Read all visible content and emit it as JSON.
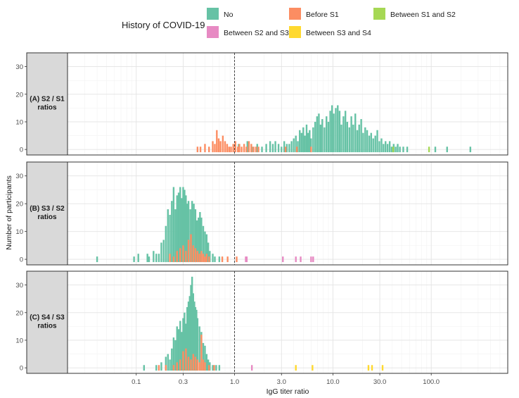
{
  "chart_data": {
    "type": "bar",
    "title": "",
    "xlabel": "IgG titer ratio",
    "ylabel": "Number of participants",
    "x_scale": "log10",
    "x_ticks": [
      0.1,
      0.3,
      1.0,
      3.0,
      10.0,
      30.0,
      100.0
    ],
    "x_tick_labels": [
      "0.1",
      "0.3",
      "1.0",
      "3.0",
      "10.0",
      "30.0",
      "100.0"
    ],
    "xlim": [
      0.02,
      600
    ],
    "ylim": [
      -2,
      35
    ],
    "y_ticks": [
      0,
      10,
      20,
      30
    ],
    "y_tick_labels": [
      "0",
      "10",
      "20",
      "30"
    ],
    "reference_line": {
      "x": 1.0,
      "style": "dashed"
    },
    "grid": true,
    "legend": {
      "title": "History of COVID-19",
      "position": "top",
      "entries": [
        {
          "name": "No",
          "color": "#66c2a5"
        },
        {
          "name": "Before S1",
          "color": "#fc8d62"
        },
        {
          "name": "Between S1 and S2",
          "color": "#a6d854"
        },
        {
          "name": "Between S2 and S3",
          "color": "#e78ac3"
        },
        {
          "name": "Between S3 and S4",
          "color": "#ffd92f"
        }
      ]
    },
    "panels": [
      {
        "strip_label": [
          "(A) S2 / S1",
          "ratios"
        ],
        "series": [
          {
            "name": "No",
            "bins": [
              [
                1.1,
                2
              ],
              [
                1.35,
                3
              ],
              [
                1.5,
                1
              ],
              [
                1.7,
                2
              ],
              [
                1.9,
                1
              ],
              [
                2.1,
                2
              ],
              [
                2.3,
                3
              ],
              [
                2.45,
                2
              ],
              [
                2.6,
                3
              ],
              [
                2.8,
                2
              ],
              [
                3.0,
                1
              ],
              [
                3.2,
                3
              ],
              [
                3.4,
                2
              ],
              [
                3.6,
                2
              ],
              [
                3.8,
                3
              ],
              [
                4.0,
                4
              ],
              [
                4.2,
                5
              ],
              [
                4.4,
                3
              ],
              [
                4.6,
                7
              ],
              [
                4.8,
                6
              ],
              [
                5.0,
                8
              ],
              [
                5.2,
                5
              ],
              [
                5.4,
                9
              ],
              [
                5.6,
                6
              ],
              [
                5.8,
                7
              ],
              [
                6.0,
                4
              ],
              [
                6.3,
                8
              ],
              [
                6.6,
                10
              ],
              [
                6.9,
                12
              ],
              [
                7.2,
                13
              ],
              [
                7.5,
                9
              ],
              [
                7.8,
                11
              ],
              [
                8.2,
                8
              ],
              [
                8.6,
                12
              ],
              [
                9.0,
                10
              ],
              [
                9.4,
                14
              ],
              [
                9.8,
                16
              ],
              [
                10.2,
                13
              ],
              [
                10.7,
                15
              ],
              [
                11.2,
                16
              ],
              [
                11.7,
                14
              ],
              [
                12.2,
                9
              ],
              [
                12.8,
                12
              ],
              [
                13.4,
                14
              ],
              [
                14.0,
                10
              ],
              [
                14.7,
                8
              ],
              [
                15.4,
                12
              ],
              [
                16.1,
                9
              ],
              [
                16.9,
                13
              ],
              [
                17.7,
                7
              ],
              [
                18.5,
                9
              ],
              [
                19.4,
                11
              ],
              [
                20.3,
                6
              ],
              [
                21.3,
                8
              ],
              [
                22.3,
                7
              ],
              [
                23.4,
                5
              ],
              [
                24.5,
                6
              ],
              [
                25.7,
                4
              ],
              [
                27.0,
                5
              ],
              [
                28.3,
                7
              ],
              [
                29.7,
                3
              ],
              [
                31.2,
                4
              ],
              [
                32.7,
                2
              ],
              [
                34.3,
                3
              ],
              [
                36,
                2
              ],
              [
                37.8,
                3
              ],
              [
                39.6,
                1
              ],
              [
                41.5,
                2
              ],
              [
                43.5,
                1
              ],
              [
                45.6,
                2
              ],
              [
                48,
                1
              ],
              [
                52,
                1
              ],
              [
                57,
                1
              ],
              [
                110,
                1
              ],
              [
                145,
                1
              ],
              [
                250,
                1
              ]
            ]
          },
          {
            "name": "Before S1",
            "bins": [
              [
                0.42,
                1
              ],
              [
                0.45,
                1
              ],
              [
                0.5,
                2
              ],
              [
                0.55,
                1
              ],
              [
                0.6,
                3
              ],
              [
                0.63,
                2
              ],
              [
                0.66,
                7
              ],
              [
                0.69,
                4
              ],
              [
                0.72,
                3
              ],
              [
                0.76,
                5
              ],
              [
                0.8,
                3
              ],
              [
                0.84,
                2
              ],
              [
                0.88,
                1
              ],
              [
                0.92,
                1
              ],
              [
                0.97,
                2
              ],
              [
                1.02,
                3
              ],
              [
                1.08,
                1
              ],
              [
                1.12,
                2
              ],
              [
                1.18,
                1
              ],
              [
                1.25,
                2
              ],
              [
                1.32,
                1
              ],
              [
                1.4,
                3
              ],
              [
                1.48,
                2
              ],
              [
                1.56,
                1
              ],
              [
                1.65,
                1
              ],
              [
                1.75,
                1
              ],
              [
                3.3,
                1
              ],
              [
                4.3,
                1
              ],
              [
                6.0,
                1
              ]
            ]
          },
          {
            "name": "Between S1 and S2",
            "bins": [
              [
                41,
                1
              ],
              [
                95,
                1
              ]
            ]
          }
        ]
      },
      {
        "strip_label": [
          "(B) S3 / S2",
          "ratios"
        ],
        "series": [
          {
            "name": "No",
            "bins": [
              [
                0.04,
                1
              ],
              [
                0.095,
                1
              ],
              [
                0.105,
                2
              ],
              [
                0.13,
                2
              ],
              [
                0.135,
                1
              ],
              [
                0.15,
                3
              ],
              [
                0.16,
                2
              ],
              [
                0.17,
                2
              ],
              [
                0.18,
                6
              ],
              [
                0.19,
                7
              ],
              [
                0.2,
                12
              ],
              [
                0.21,
                18
              ],
              [
                0.22,
                16
              ],
              [
                0.23,
                21
              ],
              [
                0.24,
                26
              ],
              [
                0.25,
                18
              ],
              [
                0.26,
                23
              ],
              [
                0.27,
                24
              ],
              [
                0.28,
                26
              ],
              [
                0.29,
                22
              ],
              [
                0.3,
                26
              ],
              [
                0.31,
                25
              ],
              [
                0.32,
                23
              ],
              [
                0.33,
                20
              ],
              [
                0.34,
                21
              ],
              [
                0.355,
                18
              ],
              [
                0.37,
                21
              ],
              [
                0.385,
                20
              ],
              [
                0.4,
                18
              ],
              [
                0.415,
                14
              ],
              [
                0.43,
                15
              ],
              [
                0.445,
                17
              ],
              [
                0.46,
                15
              ],
              [
                0.48,
                12
              ],
              [
                0.5,
                10
              ],
              [
                0.52,
                9
              ],
              [
                0.54,
                6
              ],
              [
                0.56,
                3
              ],
              [
                0.6,
                2
              ],
              [
                0.63,
                1
              ],
              [
                0.7,
                1
              ]
            ]
          },
          {
            "name": "Before S1",
            "bins": [
              [
                0.22,
                2
              ],
              [
                0.24,
                1
              ],
              [
                0.26,
                3
              ],
              [
                0.28,
                4
              ],
              [
                0.3,
                5
              ],
              [
                0.32,
                3
              ],
              [
                0.34,
                7
              ],
              [
                0.36,
                9
              ],
              [
                0.38,
                5
              ],
              [
                0.4,
                4
              ],
              [
                0.42,
                3
              ],
              [
                0.44,
                2
              ],
              [
                0.46,
                3
              ],
              [
                0.48,
                2
              ],
              [
                0.5,
                1
              ],
              [
                0.52,
                2
              ],
              [
                0.55,
                1
              ],
              [
                0.75,
                1
              ],
              [
                0.85,
                1
              ],
              [
                1.05,
                1
              ]
            ]
          },
          {
            "name": "Between S2 and S3",
            "bins": [
              [
                1.3,
                1
              ],
              [
                1.33,
                1
              ],
              [
                3.1,
                1
              ],
              [
                4.2,
                1
              ],
              [
                4.7,
                1
              ],
              [
                6.0,
                1
              ],
              [
                6.3,
                1
              ]
            ]
          }
        ]
      },
      {
        "strip_label": [
          "(C) S4 / S3",
          "ratios"
        ],
        "series": [
          {
            "name": "No",
            "bins": [
              [
                0.12,
                1
              ],
              [
                0.16,
                1
              ],
              [
                0.18,
                2
              ],
              [
                0.2,
                4
              ],
              [
                0.21,
                5
              ],
              [
                0.22,
                3
              ],
              [
                0.23,
                7
              ],
              [
                0.24,
                11
              ],
              [
                0.25,
                10
              ],
              [
                0.26,
                15
              ],
              [
                0.27,
                14
              ],
              [
                0.28,
                17
              ],
              [
                0.29,
                13
              ],
              [
                0.3,
                18
              ],
              [
                0.31,
                20
              ],
              [
                0.32,
                16
              ],
              [
                0.33,
                22
              ],
              [
                0.34,
                24
              ],
              [
                0.35,
                26
              ],
              [
                0.36,
                30
              ],
              [
                0.37,
                33
              ],
              [
                0.38,
                27
              ],
              [
                0.39,
                24
              ],
              [
                0.4,
                22
              ],
              [
                0.41,
                21
              ],
              [
                0.42,
                18
              ],
              [
                0.44,
                15
              ],
              [
                0.46,
                13
              ],
              [
                0.48,
                9
              ],
              [
                0.5,
                8
              ],
              [
                0.52,
                5
              ],
              [
                0.54,
                3
              ],
              [
                0.56,
                2
              ],
              [
                0.6,
                1
              ],
              [
                0.65,
                1
              ],
              [
                0.7,
                1
              ]
            ]
          },
          {
            "name": "Before S1",
            "bins": [
              [
                0.17,
                1
              ],
              [
                0.2,
                1
              ],
              [
                0.24,
                1
              ],
              [
                0.26,
                2
              ],
              [
                0.28,
                3
              ],
              [
                0.3,
                6
              ],
              [
                0.32,
                7
              ],
              [
                0.34,
                4
              ],
              [
                0.36,
                3
              ],
              [
                0.38,
                5
              ],
              [
                0.4,
                4
              ],
              [
                0.42,
                3
              ],
              [
                0.44,
                2
              ],
              [
                0.46,
                12
              ],
              [
                0.48,
                3
              ],
              [
                0.5,
                2
              ],
              [
                0.55,
                1
              ],
              [
                0.62,
                1
              ]
            ]
          },
          {
            "name": "Between S2 and S3",
            "bins": [
              [
                1.5,
                1
              ]
            ]
          },
          {
            "name": "Between S3 and S4",
            "bins": [
              [
                4.2,
                1
              ],
              [
                6.2,
                1
              ],
              [
                23,
                1
              ],
              [
                25,
                1
              ],
              [
                32,
                1
              ]
            ]
          }
        ]
      }
    ]
  }
}
